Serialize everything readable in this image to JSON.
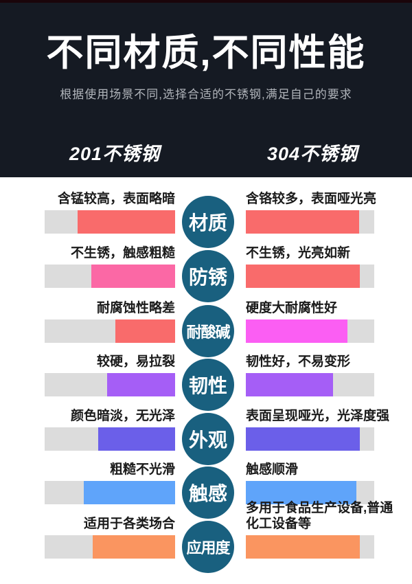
{
  "header": {
    "title": "不同材质,不同性能",
    "subtitle": "根据使用场景不同,选择合适的不锈钢,满足自己的要求",
    "left_column": "201不锈钢",
    "right_column": "304不锈钢",
    "background_color": "#151a23",
    "accent_strip_color": "#1a050a"
  },
  "colors": {
    "bar_track": "#dcdcdc",
    "badge_circle": "#19607f",
    "salmon": "#f96b6b",
    "pink": "#fb68a5",
    "magenta": "#fb5ef3",
    "purple": "#a55ef6",
    "indigo": "#6b5fe9",
    "blue": "#5fa4fa",
    "orange": "#fa9560"
  },
  "rows": [
    {
      "badge": "材质",
      "left": {
        "label": "含锰较高，表面略暗",
        "fill": {
          "color": "#f96b6b",
          "percent": 75
        }
      },
      "right": {
        "label": "含铬较多，表面哑光亮",
        "fill": {
          "color": "#f96b6b",
          "percent": 88
        }
      }
    },
    {
      "badge": "防锈",
      "left": {
        "label": "不生锈，触感粗糙",
        "fill": {
          "color": "#fb68a5",
          "percent": 64
        }
      },
      "right": {
        "label": "不生锈，光亮如新",
        "fill": {
          "color": "#f96b6b",
          "percent": 89
        }
      }
    },
    {
      "badge": "耐酸碱",
      "left": {
        "label": "耐腐蚀性略差",
        "fill": {
          "color": "#f96b6b",
          "percent": 46
        }
      },
      "right": {
        "label": "硬度大耐腐性好",
        "fill": {
          "color": "#fb5ef3",
          "percent": 79
        }
      }
    },
    {
      "badge": "韧性",
      "left": {
        "label": "较硬，易拉裂",
        "fill": {
          "color": "#a55ef6",
          "percent": 52
        }
      },
      "right": {
        "label": "韧性好，不易变形",
        "fill": {
          "color": "#a55ef6",
          "percent": 68
        }
      }
    },
    {
      "badge": "外观",
      "left": {
        "label": "颜色暗淡，无光泽",
        "fill": {
          "color": "#6b5fe9",
          "percent": 59
        }
      },
      "right": {
        "label": "表面呈现哑光，光泽度强",
        "fill": {
          "color": "#6b5fe9",
          "percent": 89
        }
      }
    },
    {
      "badge": "触感",
      "left": {
        "label": "粗糙不光滑",
        "fill": {
          "color": "#5fa4fa",
          "percent": 70
        }
      },
      "right": {
        "label": "触感顺滑",
        "fill": {
          "color": "#5fa4fa",
          "percent": 86
        }
      }
    },
    {
      "badge": "应用度",
      "left": {
        "label": "适用于各类场合",
        "fill": {
          "color": "#fa9560",
          "percent": 63
        }
      },
      "right": {
        "label": "多用于食品生产设备,普通\n化工设备等",
        "fill": {
          "color": "#fa9560",
          "percent": 89
        }
      }
    }
  ]
}
